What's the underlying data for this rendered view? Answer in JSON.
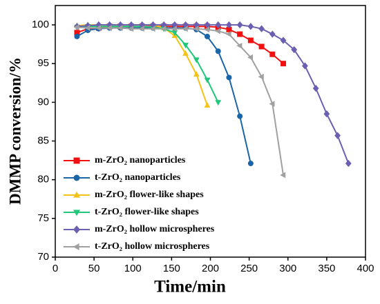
{
  "chart_data": {
    "type": "line",
    "xlabel": "Time/min",
    "ylabel": "DMMP conversion/%",
    "xlim": [
      0,
      400
    ],
    "xticks": [
      0,
      50,
      100,
      150,
      200,
      250,
      300,
      350,
      400
    ],
    "ylim": [
      70,
      102.5
    ],
    "yticks": [
      70,
      75,
      80,
      85,
      90,
      95,
      100
    ],
    "legend": "lower left",
    "series": [
      {
        "name": "m-ZrO₂ nanoparticles",
        "color": "#f01010",
        "marker": "square",
        "x": [
          28,
          42,
          56,
          70,
          84,
          98,
          112,
          126,
          140,
          154,
          168,
          182,
          196,
          210,
          224,
          238,
          252,
          266,
          280,
          294
        ],
        "values": [
          99.0,
          99.5,
          99.6,
          99.8,
          99.8,
          99.8,
          99.8,
          99.8,
          99.8,
          99.8,
          99.8,
          99.8,
          99.8,
          99.7,
          99.4,
          98.8,
          98.0,
          97.2,
          96.2,
          95.0
        ]
      },
      {
        "name": "t-ZrO₂ nanoparticles",
        "color": "#1a64a8",
        "marker": "circle",
        "x": [
          28,
          42,
          56,
          70,
          84,
          98,
          112,
          126,
          140,
          154,
          168,
          182,
          196,
          210,
          224,
          238,
          252
        ],
        "values": [
          98.5,
          99.3,
          99.5,
          99.6,
          99.6,
          99.6,
          99.6,
          99.6,
          99.6,
          99.6,
          99.6,
          99.4,
          98.5,
          96.6,
          93.2,
          88.2,
          82.1
        ]
      },
      {
        "name": "m-ZrO₂ flower-like shapes",
        "color": "#f5c21a",
        "marker": "triangle-up",
        "x": [
          28,
          42,
          56,
          70,
          84,
          98,
          112,
          126,
          140,
          154,
          168,
          182,
          196
        ],
        "values": [
          99.9,
          100,
          100,
          100,
          100,
          100,
          100,
          100,
          99.6,
          98.6,
          96.3,
          93.6,
          89.6
        ]
      },
      {
        "name": "t-ZrO₂ flower-like shapes",
        "color": "#1ec878",
        "marker": "triangle-down",
        "x": [
          28,
          42,
          56,
          70,
          84,
          98,
          112,
          126,
          140,
          154,
          168,
          182,
          196,
          210
        ],
        "values": [
          99.7,
          99.8,
          99.8,
          99.8,
          99.8,
          99.8,
          99.8,
          99.7,
          99.5,
          99.0,
          97.4,
          95.5,
          92.9,
          90.0
        ]
      },
      {
        "name": "m-ZrO₂ hollow microspheres",
        "color": "#6a5fb0",
        "marker": "diamond",
        "x": [
          28,
          42,
          56,
          70,
          84,
          98,
          112,
          126,
          140,
          154,
          168,
          182,
          196,
          210,
          224,
          238,
          252,
          266,
          280,
          294,
          308,
          322,
          336,
          350,
          364,
          378
        ],
        "values": [
          99.8,
          99.9,
          100,
          100,
          100,
          100,
          100,
          100,
          100,
          100,
          100,
          100,
          100,
          100,
          100,
          100,
          99.8,
          99.5,
          98.8,
          98.0,
          96.8,
          94.7,
          91.8,
          88.5,
          85.7,
          82.1
        ]
      },
      {
        "name": "t-ZrO₂ hollow microspheres",
        "color": "#a0a0a0",
        "marker": "triangle-left",
        "x": [
          28,
          42,
          56,
          70,
          84,
          98,
          112,
          126,
          140,
          154,
          168,
          182,
          196,
          210,
          224,
          238,
          252,
          266,
          280,
          294
        ],
        "values": [
          99.7,
          99.6,
          99.6,
          99.6,
          99.6,
          99.5,
          99.5,
          99.5,
          99.5,
          99.5,
          99.5,
          99.5,
          99.4,
          99.2,
          98.8,
          97.3,
          95.8,
          93.3,
          89.8,
          80.6
        ]
      }
    ]
  }
}
